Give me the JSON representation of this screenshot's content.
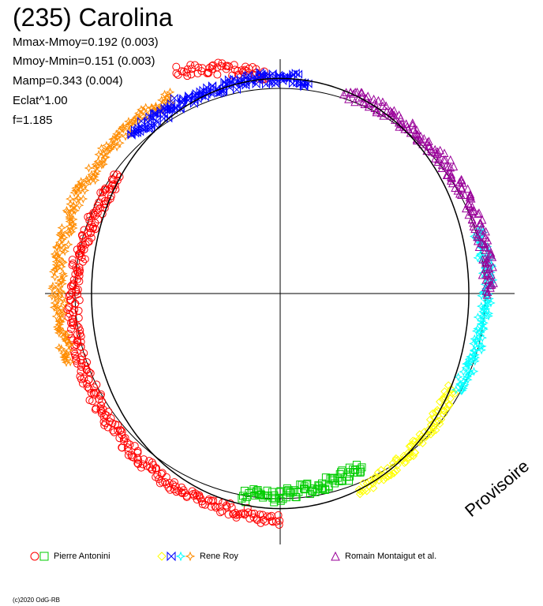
{
  "header": {
    "title": "(235) Carolina",
    "stats": [
      "Mmax-Mmoy=0.192 (0.003)",
      "Mmoy-Mmin=0.151 (0.003)",
      "Mamp=0.343 (0.004)",
      "Eclat^1.00",
      "f=1.185"
    ]
  },
  "watermark": "Provisoire",
  "copyright": "(c)2020 OdG-RB",
  "chart_data": {
    "type": "scatter",
    "description_kind": "polar lightcurve",
    "center_model": {
      "mmoy": 0,
      "mmax_minus_mmoy": 0.192,
      "mmoy_minus_mmin": 0.151,
      "amplitude": 0.343
    },
    "grid": false,
    "axes": "crosshair",
    "legend": [
      {
        "observer": "Pierre Antonini",
        "markers": [
          "circle",
          "square"
        ],
        "colors": [
          "#ff0000",
          "#00cc00"
        ]
      },
      {
        "observer": "Rene Roy",
        "markers": [
          "diamond",
          "bowtie",
          "star",
          "star"
        ],
        "colors": [
          "#ffff00",
          "#0000ff",
          "#00ffff",
          "#ff8c00"
        ]
      },
      {
        "observer": "Romain Montaigut et al.",
        "markers": [
          "triangle"
        ],
        "colors": [
          "#990099"
        ]
      }
    ],
    "series": [
      {
        "observer": "Pierre Antonini",
        "marker": "circle",
        "color": "#ff0000",
        "phase_range": [
          0.5,
          0.85
        ],
        "radius_offset": [
          0.06,
          -0.02
        ]
      },
      {
        "observer": "Pierre Antonini",
        "marker": "circle",
        "color": "#ff0000",
        "phase_range": [
          0.93,
          0.99
        ],
        "radius_offset": [
          0.12,
          0.04
        ]
      },
      {
        "observer": "Pierre Antonini",
        "marker": "square",
        "color": "#00cc00",
        "phase_range": [
          0.43,
          0.53
        ],
        "radius_offset": [
          -0.04,
          0.0
        ]
      },
      {
        "observer": "Rene Roy",
        "marker": "star",
        "color": "#ff8c00",
        "phase_range": [
          0.7,
          0.92
        ],
        "radius_offset": [
          0.05,
          0.06
        ]
      },
      {
        "observer": "Rene Roy",
        "marker": "bowtie",
        "color": "#0000ff",
        "phase_range": [
          0.88,
          1.02
        ],
        "radius_offset": [
          0.03,
          0.03
        ]
      },
      {
        "observer": "Rene Roy",
        "marker": "diamond",
        "color": "#ffff00",
        "phase_range": [
          0.33,
          0.44
        ],
        "radius_offset": [
          -0.03,
          0.02
        ]
      },
      {
        "observer": "Rene Roy",
        "marker": "star",
        "color": "#00ffff",
        "phase_range": [
          0.2,
          0.33
        ],
        "radius_offset": [
          0.01,
          -0.01
        ]
      },
      {
        "observer": "Romain Montaigut et al.",
        "marker": "triangle",
        "color": "#990099",
        "phase_range": [
          0.05,
          0.25
        ],
        "radius_offset": [
          0.02,
          0.01
        ]
      }
    ]
  }
}
